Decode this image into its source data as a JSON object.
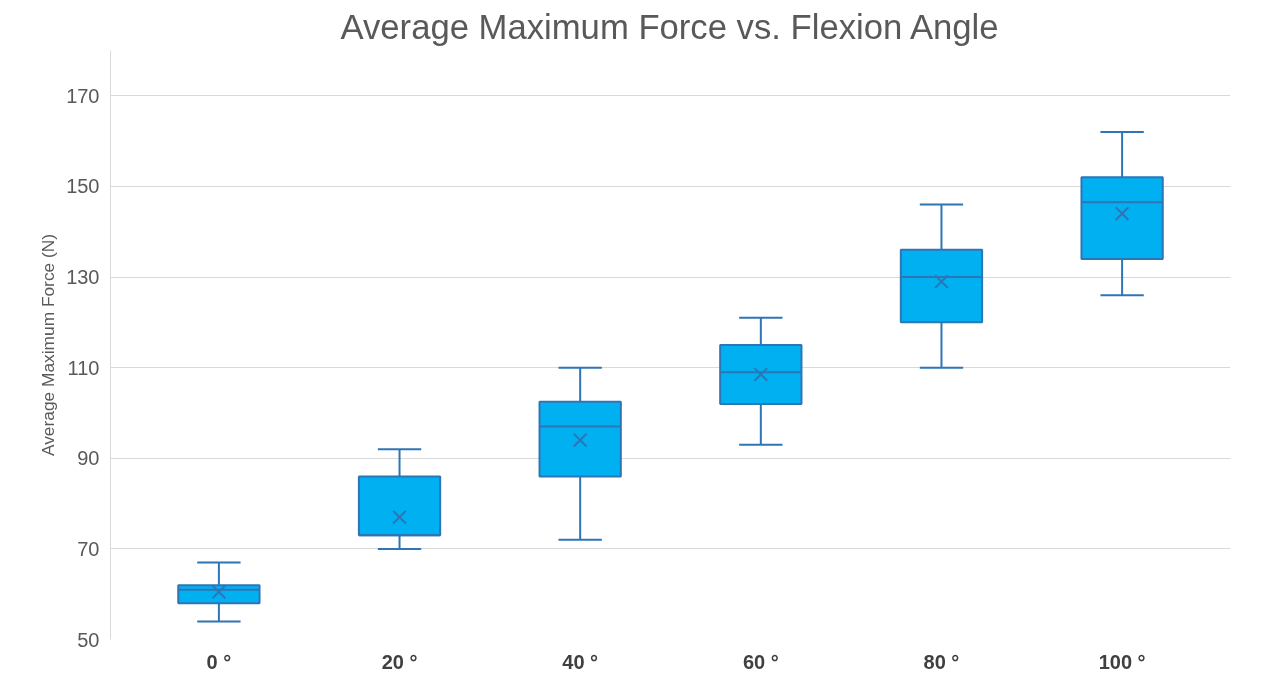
{
  "chart_data": {
    "type": "box",
    "title": "Average Maximum Force vs. Flexion Angle",
    "ylabel": "Average Maximum Force (N)",
    "categories": [
      "0 °",
      "20 °",
      "40 °",
      "60 °",
      "80 °",
      "100 °"
    ],
    "series": [
      {
        "color": "#00b0f0",
        "boxes": [
          {
            "low": 54,
            "q1": 58,
            "median": 61,
            "q3": 62,
            "high": 67,
            "mean": 60.5
          },
          {
            "low": 70,
            "q1": 73,
            "median": 73,
            "q3": 86,
            "high": 92,
            "mean": 77
          },
          {
            "low": 72,
            "q1": 86,
            "median": 97,
            "q3": 102.5,
            "high": 110,
            "mean": 94
          },
          {
            "low": 93,
            "q1": 102,
            "median": 109,
            "q3": 115,
            "high": 121,
            "mean": 108.5
          },
          {
            "low": 110,
            "q1": 120,
            "median": 130,
            "q3": 136,
            "high": 146,
            "mean": 129
          },
          {
            "low": 126,
            "q1": 134,
            "median": 146.5,
            "q3": 152,
            "high": 162,
            "mean": 144
          }
        ]
      }
    ],
    "ylim": [
      50,
      180
    ],
    "yticks": [
      50,
      70,
      90,
      110,
      130,
      150,
      170
    ],
    "grid": "y"
  }
}
